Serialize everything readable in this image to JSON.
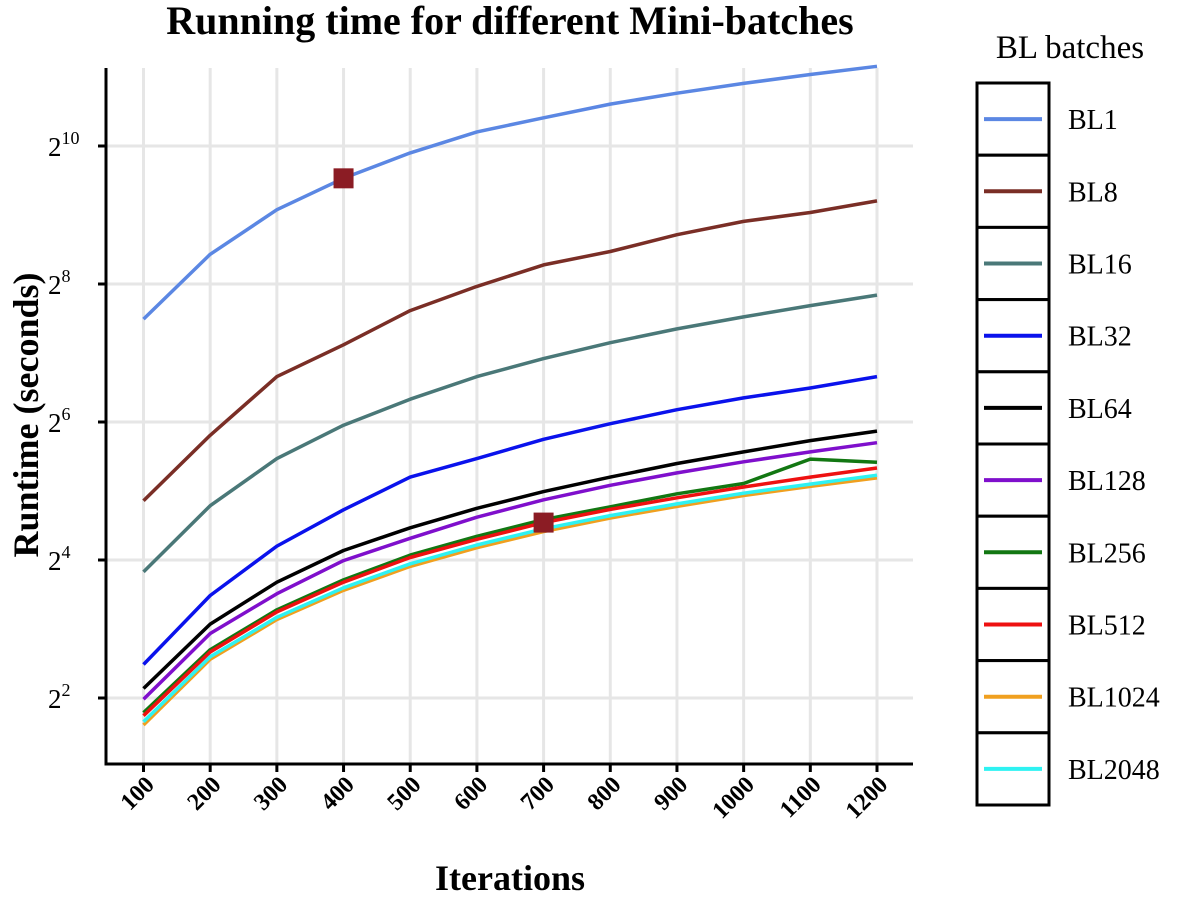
{
  "chart_data": {
    "type": "line",
    "title": "Running time for different Mini-batches",
    "xlabel": "Iterations",
    "ylabel": "Runtime (seconds)",
    "y_scale": "log2",
    "x": [
      100,
      200,
      300,
      400,
      500,
      600,
      700,
      800,
      900,
      1000,
      1100,
      1200
    ],
    "xticks": [
      "100",
      "200",
      "300",
      "400",
      "500",
      "600",
      "700",
      "800",
      "900",
      "1000",
      "1100",
      "1200"
    ],
    "yticks": [
      {
        "base": "2",
        "exp": "2",
        "value": 4
      },
      {
        "base": "2",
        "exp": "4",
        "value": 16
      },
      {
        "base": "2",
        "exp": "6",
        "value": 64
      },
      {
        "base": "2",
        "exp": "8",
        "value": 256
      },
      {
        "base": "2",
        "exp": "10",
        "value": 1024
      }
    ],
    "xlim": [
      100,
      1200
    ],
    "ylim": [
      2.5,
      2300
    ],
    "grid": true,
    "legend_title": "BL batches",
    "legend_position": "right",
    "series": [
      {
        "name": "BL1",
        "color": "#5b87e3",
        "values": [
          180,
          345,
          540,
          740,
          955,
          1180,
          1360,
          1560,
          1740,
          1920,
          2100,
          2280
        ]
      },
      {
        "name": "BL8",
        "color": "#7a2e26",
        "values": [
          29,
          56,
          101,
          139,
          196,
          250,
          310,
          355,
          420,
          480,
          525,
          590
        ]
      },
      {
        "name": "BL16",
        "color": "#4a7878",
        "values": [
          14.2,
          27.6,
          44.3,
          62,
          80.5,
          101,
          121,
          142,
          163,
          184,
          206,
          229
        ]
      },
      {
        "name": "BL32",
        "color": "#0a12ec",
        "values": [
          5.6,
          11.2,
          18.4,
          26.5,
          36.8,
          44.3,
          53.8,
          62.9,
          72.4,
          81.5,
          90.1,
          101
        ]
      },
      {
        "name": "BL64",
        "color": "#000000",
        "values": [
          4.4,
          8.4,
          12.8,
          17.6,
          22.1,
          26.9,
          31.8,
          36.8,
          42.2,
          47.4,
          53.1,
          58.4
        ]
      },
      {
        "name": "BL128",
        "color": "#7f0fcc",
        "values": [
          3.95,
          7.65,
          11.4,
          15.9,
          19.9,
          24.6,
          29.3,
          33.9,
          38.4,
          42.9,
          47.4,
          52
        ]
      },
      {
        "name": "BL256",
        "color": "#127712",
        "values": [
          3.45,
          6.5,
          9.7,
          13.1,
          16.8,
          20.3,
          24,
          27.3,
          31.1,
          34.5,
          44.1,
          42.7
        ]
      },
      {
        "name": "BL512",
        "color": "#ee1111",
        "values": [
          3.35,
          6.35,
          9.5,
          12.8,
          16.4,
          19.7,
          23.3,
          26.6,
          29.9,
          33.3,
          36.8,
          40.3
        ]
      },
      {
        "name": "BL1024",
        "color": "#f0a020",
        "values": [
          3.05,
          5.9,
          8.8,
          11.8,
          15,
          18.1,
          21.3,
          24.4,
          27.4,
          30.6,
          33.5,
          36.5
        ]
      },
      {
        "name": "BL2048",
        "color": "#2ef2f2",
        "values": [
          3.15,
          6.05,
          9.0,
          12.1,
          15.4,
          18.6,
          21.9,
          25,
          28.1,
          31.3,
          34.3,
          37.5
        ]
      }
    ],
    "markers": [
      {
        "series": "BL1",
        "x": 400,
        "y": 740,
        "color": "#8b1c24",
        "shape": "square"
      },
      {
        "series": "BL512",
        "x": 700,
        "y": 23.3,
        "color": "#8b1c24",
        "shape": "square"
      }
    ]
  }
}
